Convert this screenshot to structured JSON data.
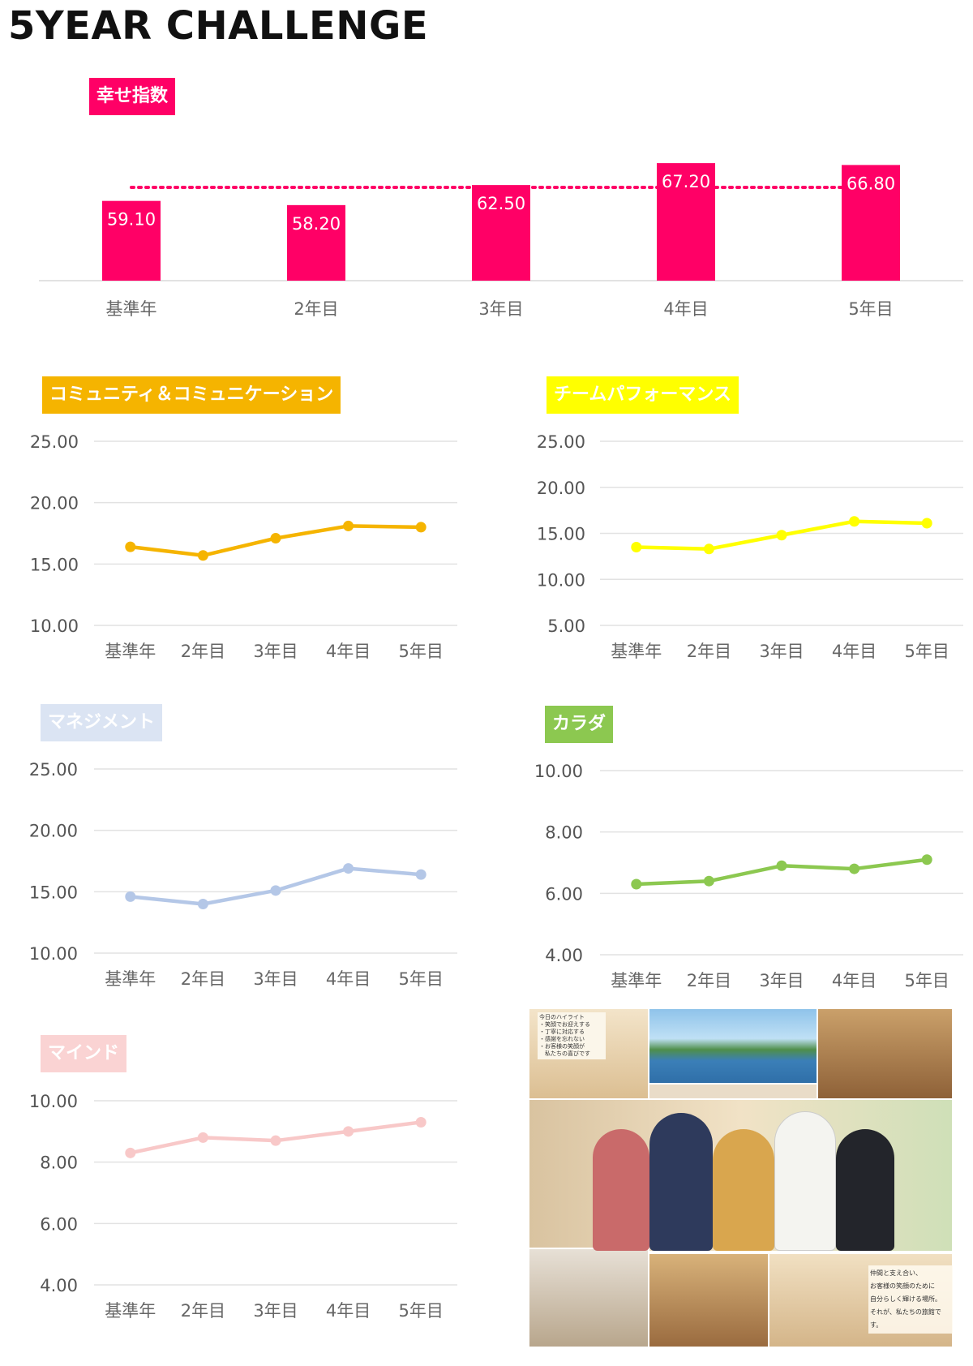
{
  "page": {
    "title": "5YEAR CHALLENGE"
  },
  "colors": {
    "happiness": "#ff0066",
    "community": "#f5b400",
    "team": "#ffff00",
    "management": "#b4c7e7",
    "body": "#8cc850",
    "mind": "#f8c8c8"
  },
  "chart_data": [
    {
      "id": "happiness",
      "type": "bar",
      "label": "幸せ指数",
      "categories": [
        "基準年",
        "2年目",
        "3年目",
        "4年目",
        "5年目"
      ],
      "values": [
        59.1,
        58.2,
        62.5,
        67.2,
        66.8
      ],
      "value_labels": [
        "59.10",
        "58.20",
        "62.50",
        "67.20",
        "66.80"
      ],
      "reference_line": 62.0,
      "ylim": [
        42,
        74
      ],
      "grid": false,
      "axis_labels": false
    },
    {
      "id": "community",
      "type": "line",
      "label": "コミュニティ＆コミュニケーション",
      "categories": [
        "基準年",
        "2年目",
        "3年目",
        "4年目",
        "5年目"
      ],
      "values": [
        16.4,
        15.7,
        17.1,
        18.1,
        18.0
      ],
      "yticks": [
        "10.00",
        "15.00",
        "20.00",
        "25.00"
      ],
      "ylim": [
        10,
        25
      ],
      "grid": true
    },
    {
      "id": "team",
      "type": "line",
      "label": "チームパフォーマンス",
      "categories": [
        "基準年",
        "2年目",
        "3年目",
        "4年目",
        "5年目"
      ],
      "values": [
        13.5,
        13.3,
        14.8,
        16.3,
        16.1
      ],
      "yticks": [
        "5.00",
        "10.00",
        "15.00",
        "20.00",
        "25.00"
      ],
      "ylim": [
        5,
        25
      ],
      "grid": true
    },
    {
      "id": "management",
      "type": "line",
      "label": "マネジメント",
      "categories": [
        "基準年",
        "2年目",
        "3年目",
        "4年目",
        "5年目"
      ],
      "values": [
        14.6,
        14.0,
        15.1,
        16.9,
        16.4
      ],
      "yticks": [
        "10.00",
        "15.00",
        "20.00",
        "25.00"
      ],
      "ylim": [
        10,
        25
      ],
      "grid": true
    },
    {
      "id": "body",
      "type": "line",
      "label": "カラダ",
      "categories": [
        "基準年",
        "2年目",
        "3年目",
        "4年目",
        "5年目"
      ],
      "values": [
        6.3,
        6.4,
        6.9,
        6.8,
        7.1
      ],
      "yticks": [
        "4.00",
        "6.00",
        "8.00",
        "10.00"
      ],
      "ylim": [
        4,
        10
      ],
      "grid": true
    },
    {
      "id": "mind",
      "type": "line",
      "label": "マインド",
      "categories": [
        "基準年",
        "2年目",
        "3年目",
        "4年目",
        "5年目"
      ],
      "values": [
        8.3,
        8.8,
        8.7,
        9.0,
        9.3
      ],
      "yticks": [
        "4.00",
        "6.00",
        "8.00",
        "10.00"
      ],
      "ylim": [
        4,
        10
      ],
      "grid": true
    }
  ],
  "illustration": {
    "note_top": [
      "今日のハイライト",
      "・笑顔でお迎えする",
      "・丁寧に対応する",
      "・感謝を忘れない",
      "・お客様の笑顔が",
      "　私たちの喜びです"
    ],
    "note_bottom": [
      "仲間と支え合い、",
      "お客様の笑顔のために",
      "自分らしく輝ける場所。",
      "それが、私たちの旅館です。"
    ]
  }
}
